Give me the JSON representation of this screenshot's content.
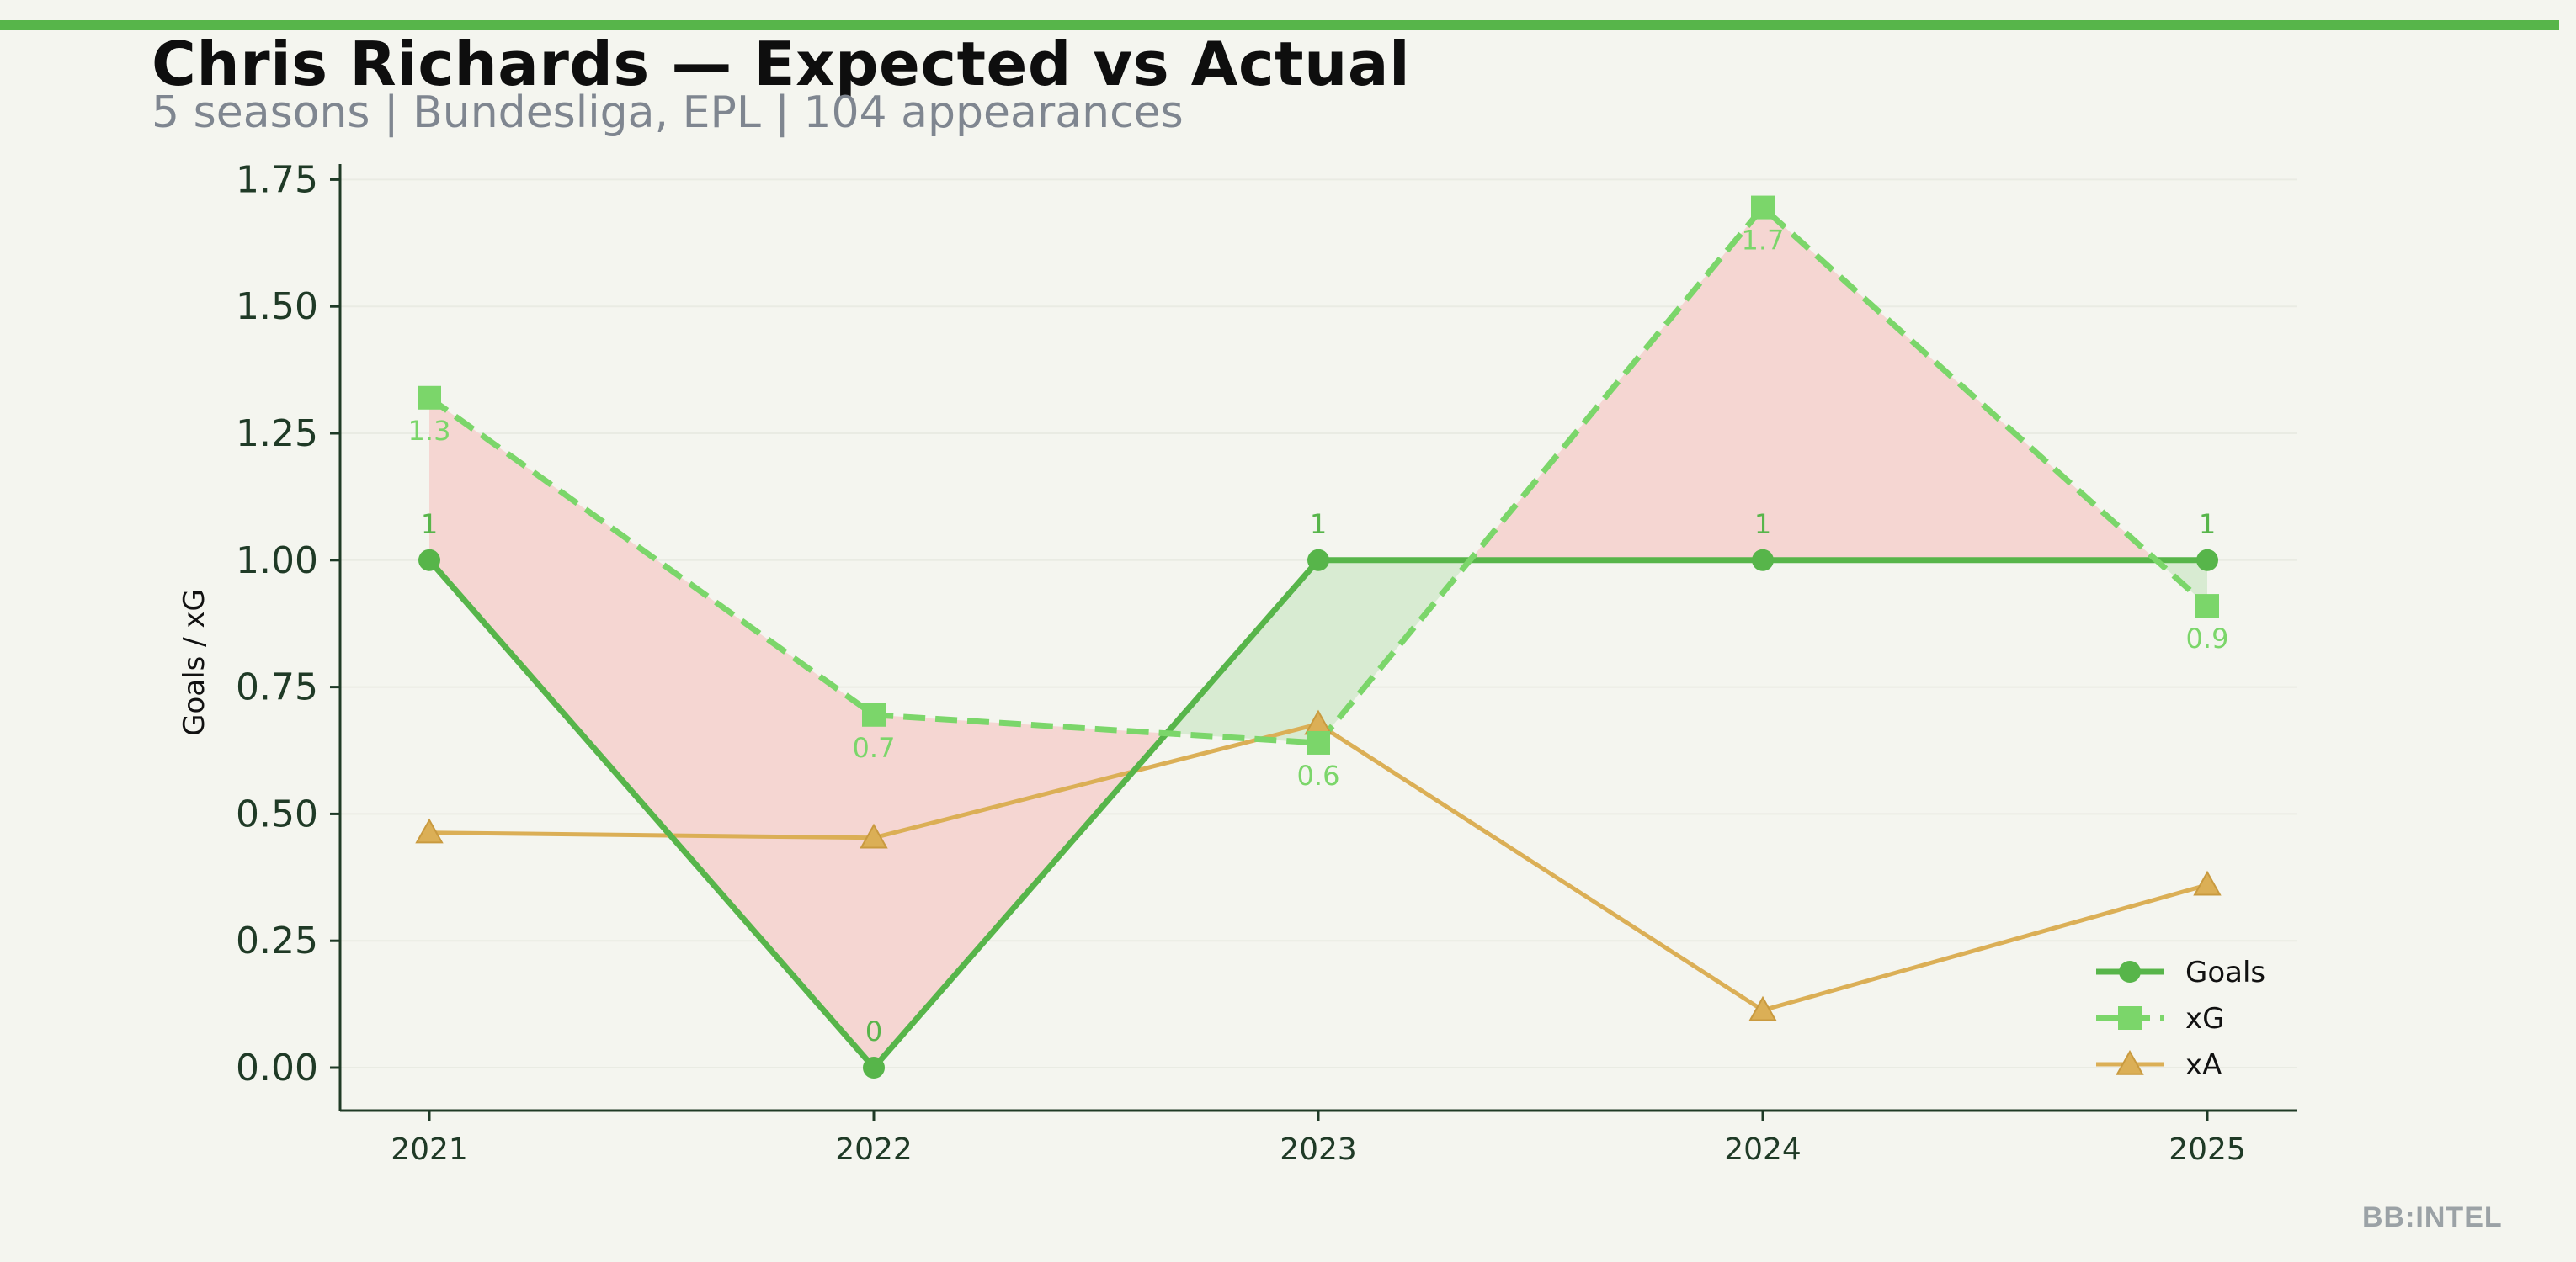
{
  "header": {
    "title": "Chris Richards — Expected vs Actual",
    "subtitle": "5 seasons | Bundesliga, EPL | 104 appearances"
  },
  "watermark": "BB:INTEL",
  "colors": {
    "goals": "#57b54a",
    "xg": "#7bd66a",
    "xa": "#dbaf56",
    "under_fill": "#f5d6d2",
    "over_fill": "#d8ebd2",
    "background": "#f4f5ef",
    "accent_bar": "#57b54a"
  },
  "chart_data": {
    "type": "line",
    "title": "Chris Richards — Expected vs Actual",
    "subtitle": "5 seasons | Bundesliga, EPL | 104 appearances",
    "xlabel": "",
    "ylabel": "Goals / xG",
    "categories": [
      "2021",
      "2022",
      "2023",
      "2024",
      "2025"
    ],
    "ylim": [
      -0.08,
      1.77
    ],
    "yticks": [
      "0.00",
      "0.25",
      "0.50",
      "0.75",
      "1.00",
      "1.25",
      "1.50",
      "1.75"
    ],
    "ytick_values": [
      0,
      0.25,
      0.5,
      0.75,
      1.0,
      1.25,
      1.5,
      1.75
    ],
    "grid": "horizontal",
    "legend_position": "bottom-right",
    "series": [
      {
        "name": "Goals",
        "key": "goals",
        "marker": "circle",
        "style": "solid",
        "values": [
          1,
          0,
          1,
          1,
          1
        ],
        "labels": [
          "1",
          "0",
          "1",
          "1",
          "1"
        ]
      },
      {
        "name": "xG",
        "key": "xg",
        "marker": "square",
        "style": "dashed",
        "values": [
          1.32,
          0.695,
          0.64,
          1.695,
          0.91
        ],
        "labels": [
          "1.3",
          "0.7",
          "0.6",
          "1.7",
          "0.9"
        ]
      },
      {
        "name": "xA",
        "key": "xa",
        "marker": "triangle",
        "style": "solid",
        "values": [
          0.463,
          0.453,
          0.677,
          0.113,
          0.36
        ],
        "labels": [
          "",
          "",
          "",
          "",
          ""
        ]
      }
    ]
  }
}
